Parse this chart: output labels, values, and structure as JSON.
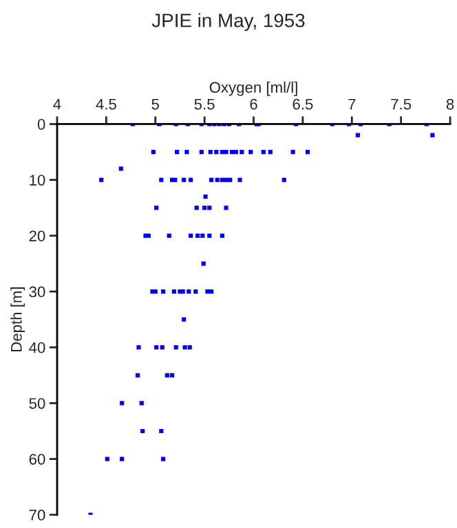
{
  "chart_data": {
    "type": "scatter",
    "title": "JPIE in May, 1953",
    "xlabel": "Oxygen [ml/l]",
    "ylabel": "Depth [m]",
    "xlim": [
      4,
      8
    ],
    "xticks": [
      4,
      4.5,
      5,
      5.5,
      6,
      6.5,
      7,
      7.5,
      8
    ],
    "ylim": [
      70,
      0
    ],
    "yticks": [
      0,
      10,
      20,
      30,
      40,
      50,
      60,
      70
    ],
    "grid": false,
    "marker": "square",
    "series": [
      {
        "color": "#0000ff",
        "x": [
          4.77,
          5.04,
          5.21,
          5.33,
          5.47,
          5.55,
          5.6,
          5.65,
          5.7,
          5.75,
          5.85,
          6.03,
          6.05,
          6.43,
          6.8,
          6.97,
          7.09,
          7.38,
          7.76,
          7.06,
          7.82,
          4.98,
          5.22,
          5.32,
          5.47,
          5.56,
          5.62,
          5.68,
          5.72,
          5.78,
          5.82,
          5.88,
          5.97,
          6.1,
          6.17,
          6.4,
          6.55,
          4.65,
          4.45,
          5.06,
          5.17,
          5.2,
          5.29,
          5.36,
          5.57,
          5.63,
          5.68,
          5.72,
          5.76,
          5.86,
          6.31,
          5.51,
          5.01,
          5.42,
          5.5,
          5.55,
          5.72,
          4.9,
          4.93,
          5.14,
          5.36,
          5.43,
          5.48,
          5.55,
          5.68,
          5.49,
          4.97,
          5.0,
          5.08,
          5.19,
          5.25,
          5.28,
          5.34,
          5.41,
          5.53,
          5.57,
          5.29,
          4.83,
          5.01,
          5.07,
          5.21,
          5.3,
          5.35,
          4.82,
          5.12,
          5.17,
          4.66,
          4.86,
          4.87,
          5.06,
          4.51,
          4.66,
          5.08,
          4.34
        ],
        "values": [
          0,
          0,
          0,
          0,
          0,
          0,
          0,
          0,
          0,
          0,
          0,
          0,
          0,
          0,
          0,
          0,
          0,
          0,
          0,
          2,
          2,
          5,
          5,
          5,
          5,
          5,
          5,
          5,
          5,
          5,
          5,
          5,
          5,
          5,
          5,
          5,
          5,
          8,
          10,
          10,
          10,
          10,
          10,
          10,
          10,
          10,
          10,
          10,
          10,
          10,
          10,
          13,
          15,
          15,
          15,
          15,
          15,
          20,
          20,
          20,
          20,
          20,
          20,
          20,
          20,
          25,
          30,
          30,
          30,
          30,
          30,
          30,
          30,
          30,
          30,
          30,
          35,
          40,
          40,
          40,
          40,
          40,
          40,
          45,
          45,
          45,
          50,
          50,
          55,
          55,
          60,
          60,
          60,
          70
        ]
      }
    ]
  }
}
